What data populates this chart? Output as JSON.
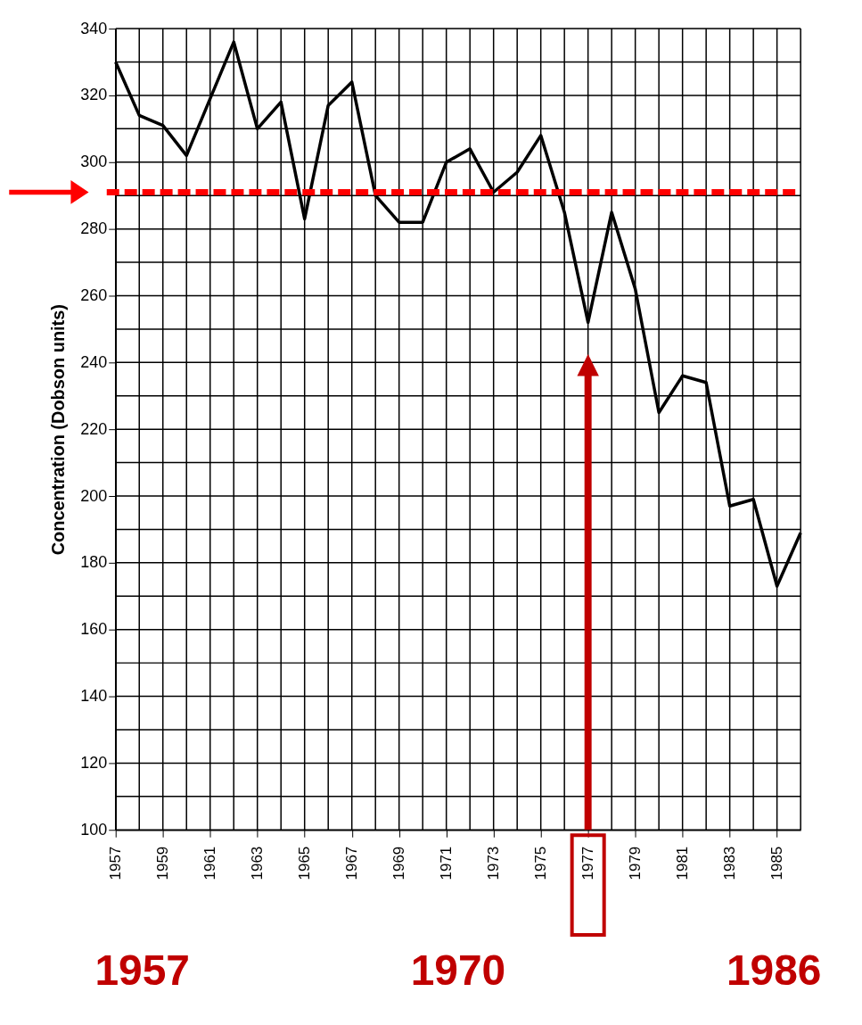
{
  "chart_data": {
    "type": "line",
    "ylabel": "Concentration (Dobson units)",
    "x": [
      1957,
      1958,
      1959,
      1960,
      1961,
      1962,
      1963,
      1964,
      1965,
      1966,
      1967,
      1968,
      1969,
      1970,
      1971,
      1972,
      1973,
      1974,
      1975,
      1976,
      1977,
      1978,
      1979,
      1980,
      1981,
      1982,
      1983,
      1984,
      1985,
      1986
    ],
    "series": [
      {
        "color": "#000000",
        "values": [
          330,
          314,
          311,
          302,
          319,
          336,
          310,
          318,
          283,
          317,
          324,
          290,
          282,
          282,
          300,
          304,
          291,
          297,
          308,
          285,
          252,
          285,
          262,
          225,
          236,
          234,
          197,
          199,
          173,
          189
        ]
      }
    ],
    "xlim": [
      1957,
      1986
    ],
    "xticks": [
      1957,
      {
        "value": 1958,
        "label": null
      },
      1959,
      {
        "value": 1960,
        "label": null
      },
      1961,
      {
        "value": 1962,
        "label": null
      },
      1963,
      {
        "value": 1964,
        "label": null
      },
      1965,
      {
        "value": 1966,
        "label": null
      },
      1967,
      {
        "value": 1968,
        "label": null
      },
      1969,
      {
        "value": 1970,
        "label": null
      },
      1971,
      {
        "value": 1972,
        "label": null
      },
      1973,
      {
        "value": 1974,
        "label": null
      },
      1975,
      {
        "value": 1976,
        "label": null
      },
      1977,
      {
        "value": 1978,
        "label": null
      },
      1979,
      {
        "value": 1980,
        "label": null
      },
      1981,
      {
        "value": 1982,
        "label": null
      },
      1983,
      {
        "value": 1984,
        "label": null
      },
      1985,
      {
        "value": 1986,
        "label": null
      }
    ],
    "ylim": [
      100,
      340
    ],
    "yticks": [
      100,
      {
        "value": 110,
        "label": null
      },
      120,
      {
        "value": 130,
        "label": null
      },
      140,
      {
        "value": 150,
        "label": null
      },
      160,
      {
        "value": 170,
        "label": null
      },
      180,
      {
        "value": 190,
        "label": null
      },
      200,
      {
        "value": 210,
        "label": null
      },
      220,
      {
        "value": 230,
        "label": null
      },
      240,
      {
        "value": 250,
        "label": null
      },
      260,
      {
        "value": 270,
        "label": null
      },
      280,
      {
        "value": 290,
        "label": null
      },
      300,
      {
        "value": 310,
        "label": null
      },
      320,
      {
        "value": 330,
        "label": null
      },
      340
    ],
    "grid": true,
    "line_style": "solid",
    "marker": "none",
    "ref_lines": [
      {
        "axis": "y",
        "value": 291,
        "color": "#ff0000",
        "line_style": "dashed"
      },
      {
        "axis": "x",
        "value": 1977,
        "color": "#c00000",
        "line_style": "solid"
      }
    ],
    "annotations": [
      "1957",
      "1970",
      "1986"
    ]
  }
}
